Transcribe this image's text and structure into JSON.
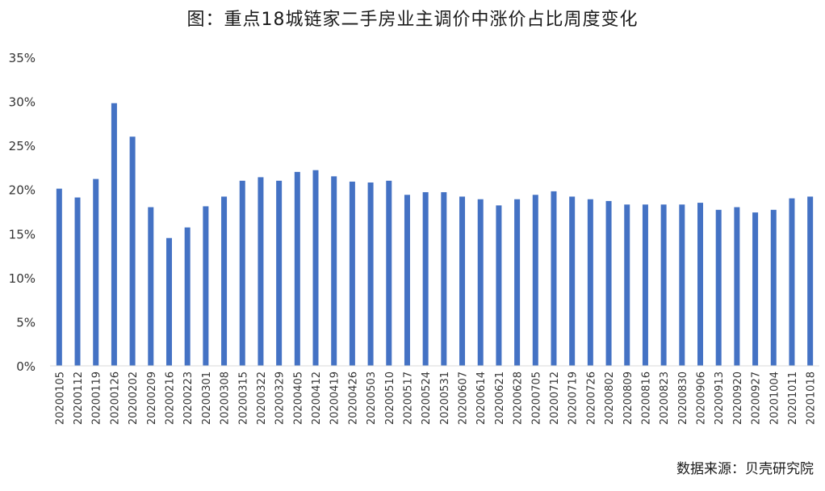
{
  "chart_data": {
    "type": "bar",
    "title": "图：重点18城链家二手房业主调价中涨价占比周度变化",
    "source": "数据来源：贝壳研究院",
    "xlabel": "",
    "ylabel": "",
    "ylim": [
      0,
      35
    ],
    "yticks": [
      "0%",
      "5%",
      "10%",
      "15%",
      "20%",
      "25%",
      "30%",
      "35%"
    ],
    "grid": false,
    "legend": "none",
    "bar_color": "#4472C4",
    "categories": [
      "20200105",
      "20200112",
      "20200119",
      "20200126",
      "20200202",
      "20200209",
      "20200216",
      "20200223",
      "20200301",
      "20200308",
      "20200315",
      "20200322",
      "20200329",
      "20200405",
      "20200412",
      "20200419",
      "20200426",
      "20200503",
      "20200510",
      "20200517",
      "20200524",
      "20200531",
      "20200607",
      "20200614",
      "20200621",
      "20200628",
      "20200705",
      "20200712",
      "20200719",
      "20200726",
      "20200802",
      "20200809",
      "20200816",
      "20200823",
      "20200830",
      "20200906",
      "20200913",
      "20200920",
      "20200927",
      "20201004",
      "20201011",
      "20201018"
    ],
    "values": [
      20.1,
      19.1,
      21.2,
      29.8,
      26.0,
      18.0,
      14.5,
      15.7,
      18.1,
      19.2,
      21.0,
      21.4,
      21.0,
      22.0,
      22.2,
      21.5,
      20.9,
      20.8,
      21.0,
      19.4,
      19.7,
      19.7,
      19.2,
      18.9,
      18.2,
      18.9,
      19.4,
      19.8,
      19.2,
      18.9,
      18.7,
      18.3,
      18.3,
      18.3,
      18.3,
      18.5,
      17.7,
      18.0,
      17.4,
      17.7,
      19.0,
      19.2
    ]
  }
}
